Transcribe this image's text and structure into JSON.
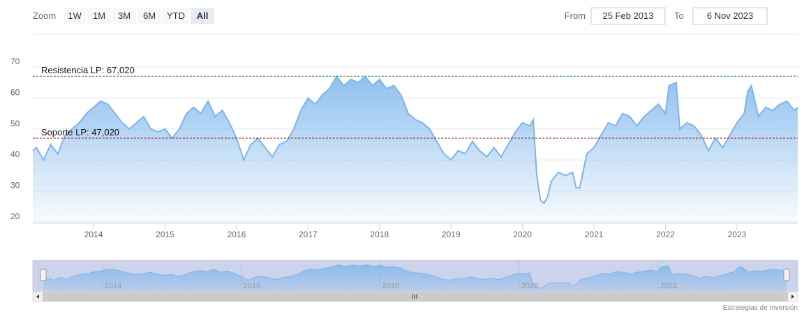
{
  "chart_data": {
    "type": "area",
    "zoom_label": "Zoom",
    "range_buttons": [
      "1W",
      "1M",
      "3M",
      "6M",
      "YTD",
      "All"
    ],
    "selected_button": "All",
    "from_label": "From",
    "from_date": "25 Feb 2013",
    "to_label": "To",
    "to_date": "6 Nov 2023",
    "credits": "Estrategias de Inversión",
    "color": "#7cb5ec",
    "x": [
      2013.15,
      2013.2,
      2013.3,
      2013.4,
      2013.5,
      2013.6,
      2013.7,
      2013.8,
      2013.9,
      2014.0,
      2014.1,
      2014.2,
      2014.3,
      2014.4,
      2014.5,
      2014.6,
      2014.7,
      2014.8,
      2014.9,
      2015.0,
      2015.1,
      2015.2,
      2015.3,
      2015.4,
      2015.5,
      2015.6,
      2015.7,
      2015.8,
      2015.9,
      2016.0,
      2016.1,
      2016.2,
      2016.3,
      2016.4,
      2016.5,
      2016.6,
      2016.7,
      2016.8,
      2016.9,
      2017.0,
      2017.1,
      2017.2,
      2017.3,
      2017.4,
      2017.5,
      2017.6,
      2017.7,
      2017.8,
      2017.9,
      2018.0,
      2018.1,
      2018.2,
      2018.3,
      2018.4,
      2018.5,
      2018.6,
      2018.7,
      2018.8,
      2018.9,
      2019.0,
      2019.1,
      2019.2,
      2019.3,
      2019.4,
      2019.5,
      2019.6,
      2019.7,
      2019.8,
      2019.9,
      2020.0,
      2020.1,
      2020.15,
      2020.2,
      2020.25,
      2020.3,
      2020.35,
      2020.4,
      2020.5,
      2020.6,
      2020.7,
      2020.75,
      2020.8,
      2020.9,
      2021.0,
      2021.1,
      2021.2,
      2021.3,
      2021.4,
      2021.5,
      2021.6,
      2021.7,
      2021.8,
      2021.9,
      2022.0,
      2022.05,
      2022.15,
      2022.2,
      2022.3,
      2022.4,
      2022.5,
      2022.6,
      2022.7,
      2022.8,
      2022.9,
      2023.0,
      2023.1,
      2023.15,
      2023.2,
      2023.3,
      2023.4,
      2023.5,
      2023.6,
      2023.7,
      2023.8,
      2023.85
    ],
    "values": [
      43,
      44,
      40,
      45,
      42,
      48,
      50,
      52,
      55,
      57,
      59,
      58,
      55,
      52,
      50,
      52,
      54,
      50,
      49,
      50,
      47,
      50,
      55,
      57,
      55,
      59,
      54,
      56,
      52,
      47,
      40,
      45,
      47,
      44,
      41,
      45,
      46,
      50,
      56,
      60,
      58,
      61,
      63,
      67,
      64,
      66,
      65,
      67,
      64,
      66,
      63,
      64,
      61,
      55,
      53,
      52,
      50,
      46,
      42,
      40,
      43,
      42,
      46,
      43,
      41,
      44,
      41,
      45,
      49,
      52,
      51,
      53,
      35,
      27,
      26,
      28,
      33,
      36,
      35,
      36,
      31,
      31,
      42,
      44,
      48,
      52,
      51,
      55,
      54,
      51,
      54,
      56,
      58,
      55,
      64,
      65,
      50,
      52,
      51,
      48,
      43,
      47,
      44,
      48,
      52,
      55,
      62,
      64,
      54,
      57,
      56,
      58,
      59,
      56,
      57
    ],
    "xlim": [
      2013.15,
      2023.85
    ],
    "xticks": [
      2014,
      2015,
      2016,
      2017,
      2018,
      2019,
      2020,
      2021,
      2022,
      2023
    ],
    "ylim": [
      20,
      70
    ],
    "yticks": [
      20,
      30,
      40,
      50,
      60,
      70
    ],
    "grid": true,
    "plot_lines": [
      {
        "label": "Resistencia LP: 67,020",
        "value": 67.02,
        "color": "#2e8b2e"
      },
      {
        "label": "Soporte LP: 47,020",
        "value": 47.02,
        "color": "#a01010"
      }
    ],
    "navigator_xticks": [
      2014,
      2016,
      2018,
      2020,
      2022
    ]
  }
}
